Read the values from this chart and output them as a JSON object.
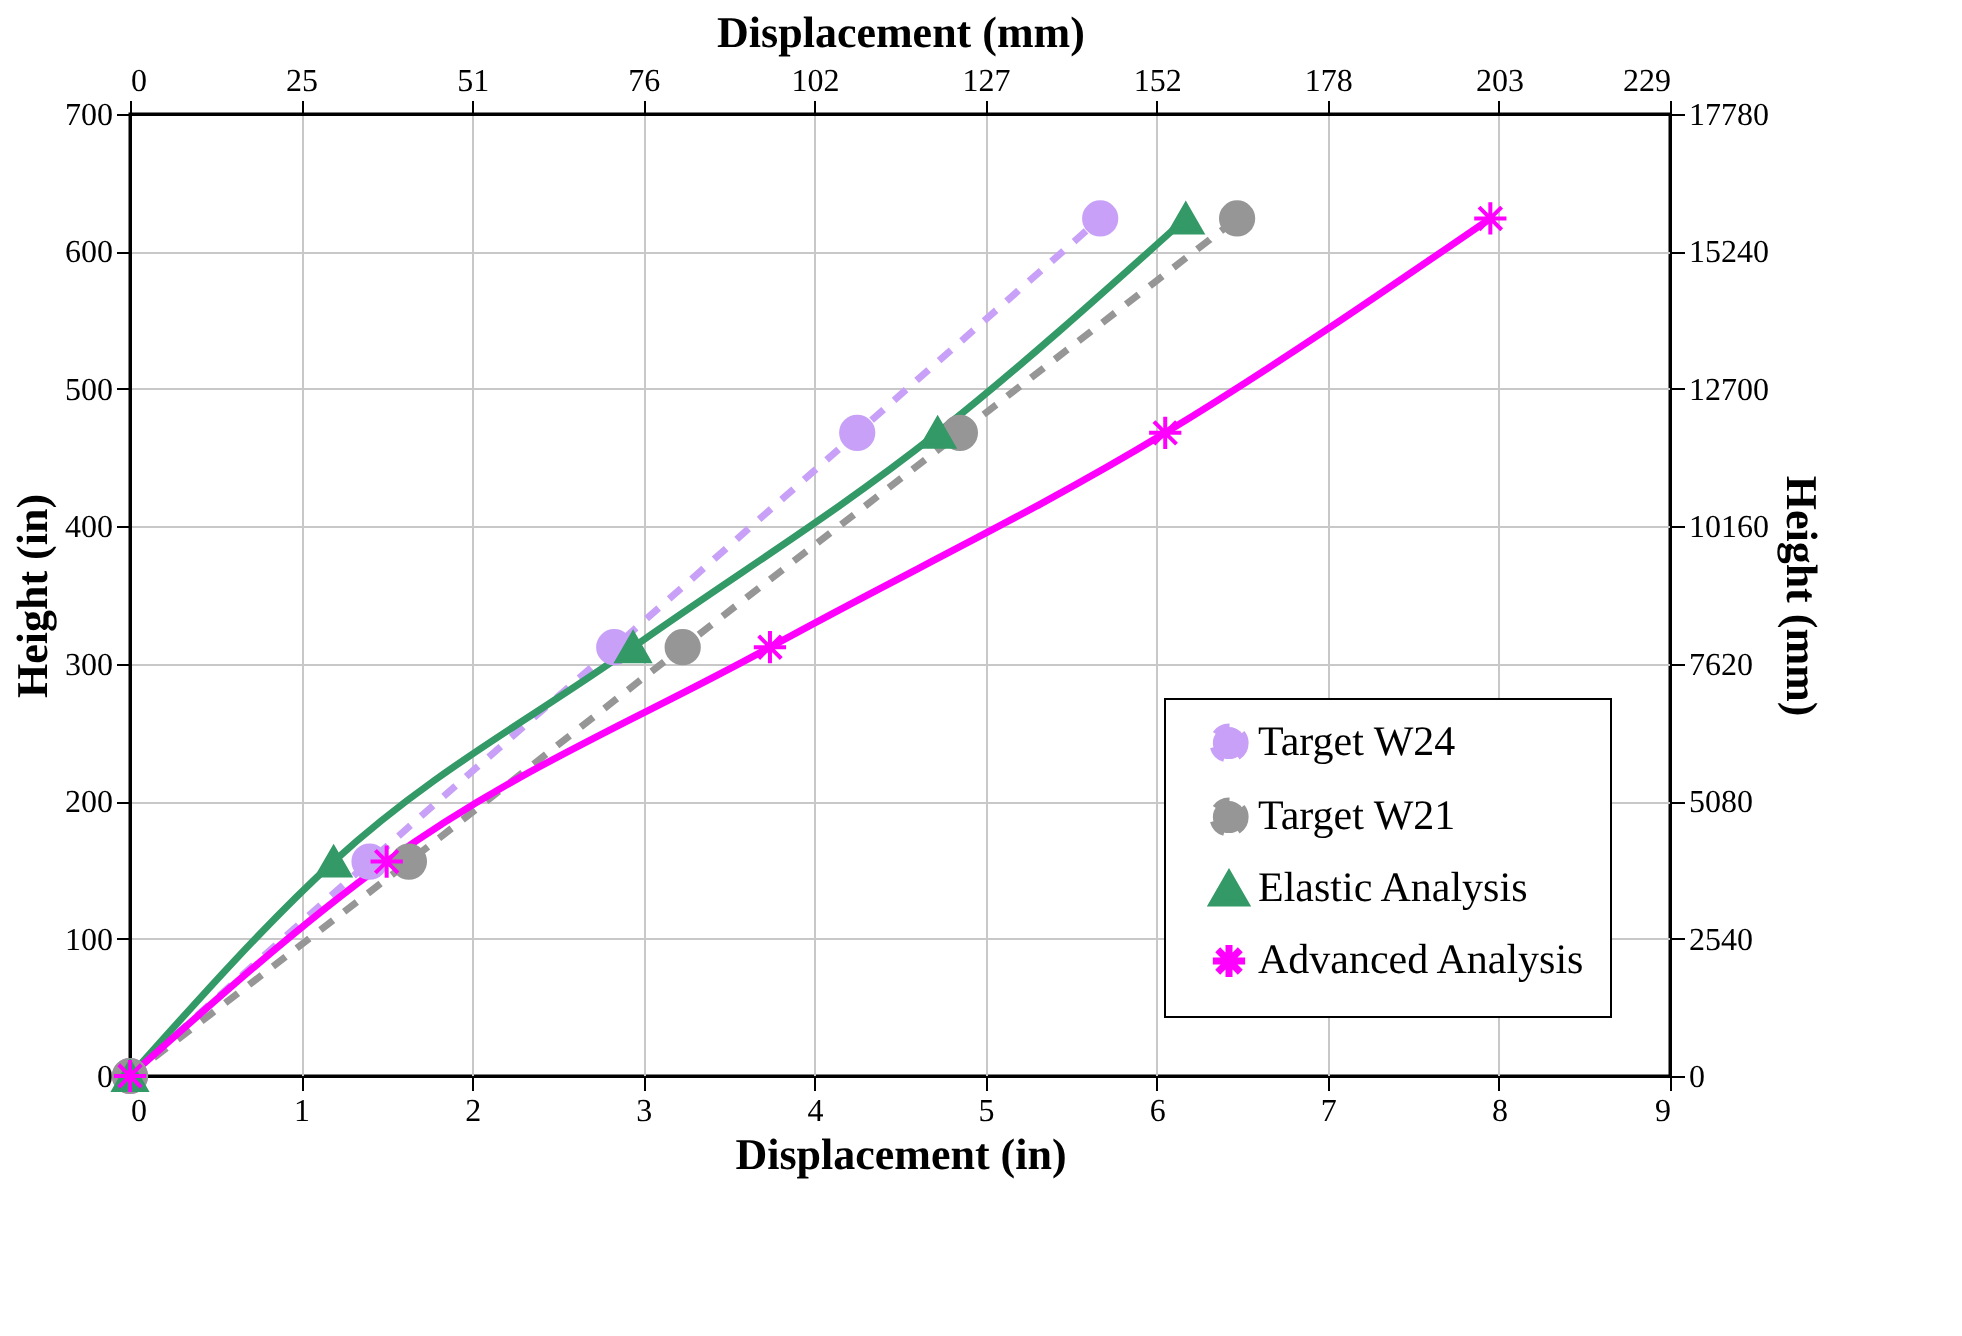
{
  "chart_data": {
    "type": "line",
    "xlabel": "Displacement (in)",
    "ylabel": "Height (in)",
    "x2label": "Displacement (mm)",
    "y2label": "Height (mm)",
    "xlim": [
      0,
      9
    ],
    "xticks": [
      0,
      1,
      2,
      3,
      4,
      5,
      6,
      7,
      8,
      9
    ],
    "ylim": [
      0,
      700
    ],
    "yticks": [
      0,
      100,
      200,
      300,
      400,
      500,
      600,
      700
    ],
    "x2lim": [
      0,
      228.6
    ],
    "x2ticks": [
      0,
      {
        "value": 25.4,
        "label": "25"
      },
      {
        "value": 50.8,
        "label": "51"
      },
      {
        "value": 76.2,
        "label": "76"
      },
      {
        "value": 101.6,
        "label": "102"
      },
      {
        "value": 127,
        "label": "127"
      },
      {
        "value": 152.4,
        "label": "152"
      },
      {
        "value": 177.8,
        "label": "178"
      },
      {
        "value": 203.2,
        "label": "203"
      },
      {
        "value": 228.6,
        "label": "229"
      }
    ],
    "y2lim": [
      0,
      17780
    ],
    "y2ticks": [
      0,
      2540,
      5080,
      7620,
      10160,
      12700,
      15240,
      17780
    ],
    "grid": true,
    "legend": "bottom right",
    "series": [
      {
        "name": "Target W24",
        "color": "#c8a0f8",
        "line_style": "dashed",
        "marker": "circle",
        "x": [
          0,
          1.4,
          2.83,
          4.25,
          5.67
        ],
        "values": [
          0,
          156,
          312,
          468,
          624
        ]
      },
      {
        "name": "Target W21",
        "color": "#969696",
        "line_style": "dashed",
        "marker": "circle",
        "x": [
          0,
          1.63,
          3.23,
          4.85,
          6.47
        ],
        "values": [
          0,
          156,
          312,
          468,
          624
        ]
      },
      {
        "name": "Elastic Analysis",
        "color": "#339966",
        "line_style": "solid",
        "marker": "triangle",
        "x": [
          0,
          1.19,
          2.94,
          4.72,
          6.17
        ],
        "values": [
          0,
          156,
          312,
          468,
          624
        ]
      },
      {
        "name": "Advanced Analysis",
        "color": "#ff00ff",
        "line_style": "solid",
        "marker": "cross",
        "x": [
          0,
          1.5,
          3.74,
          6.05,
          7.95
        ],
        "values": [
          0,
          156,
          312,
          468,
          624
        ]
      }
    ]
  }
}
